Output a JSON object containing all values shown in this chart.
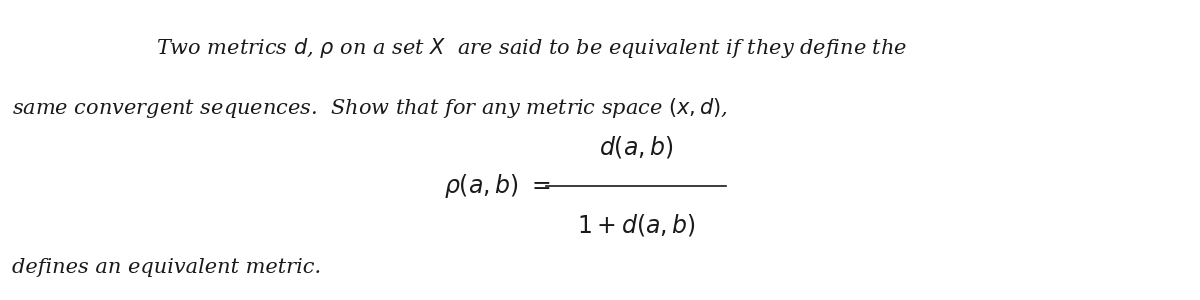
{
  "background_color": "#ffffff",
  "line1": "Two metrics $d$, $\\rho$ on a set $X$  are said to be equivalent if they define the",
  "line2": "same convergent sequences.  Show that for any metric space $(x, d)$,",
  "formula_lhs": "$\\rho(a, b) \\ = $",
  "formula_numerator": "$d(a, b)$",
  "formula_denominator": "$1 + d(a, b)$",
  "line3": "defines an equivalent metric.",
  "font_size_main": 15,
  "font_size_formula": 17,
  "text_color": "#1a1a1a",
  "fig_width": 12.0,
  "fig_height": 3.0,
  "dpi": 100
}
